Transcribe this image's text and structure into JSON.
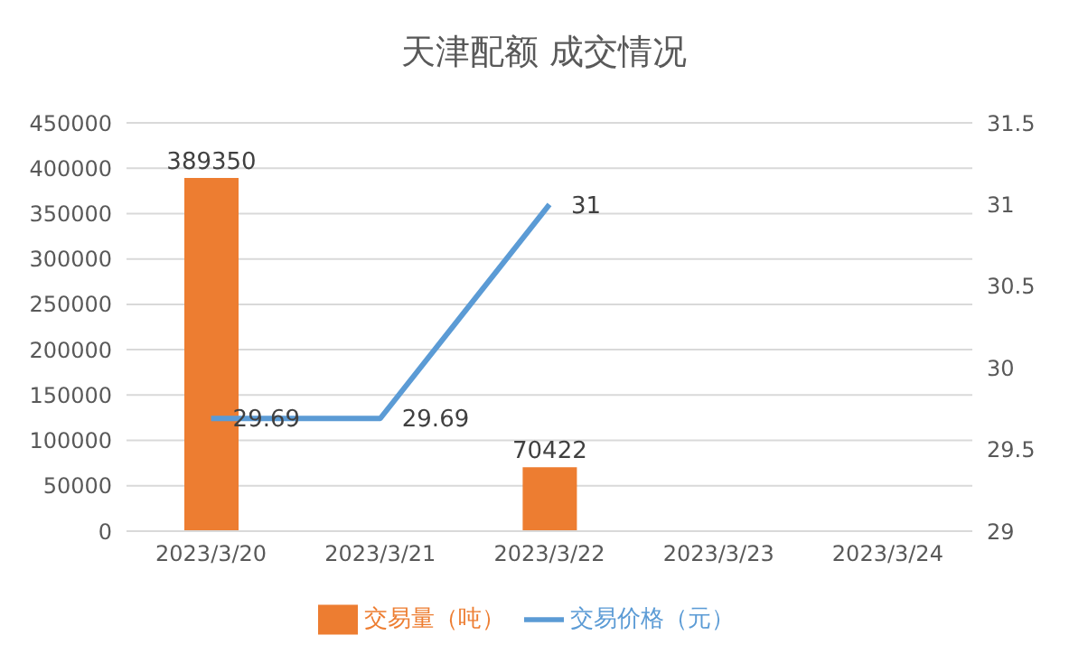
{
  "chart_data": {
    "type": "bar",
    "title": "天津配额 成交情况",
    "categories": [
      "2023/3/20",
      "2023/3/21",
      "2023/3/22",
      "2023/3/23",
      "2023/3/24"
    ],
    "series": [
      {
        "name": "交易量（吨）",
        "color": "#ed7d31",
        "values": [
          389350,
          null,
          70422,
          null,
          null
        ]
      },
      {
        "name": "交易价格（元）",
        "type": "line",
        "axis": "y2",
        "color": "#5b9bd5",
        "values": [
          29.69,
          29.69,
          31,
          null,
          null
        ]
      }
    ],
    "ylim": [
      0,
      450000
    ],
    "yticks": [
      0,
      50000,
      100000,
      150000,
      200000,
      250000,
      300000,
      350000,
      400000,
      450000
    ],
    "y2lim": [
      29,
      31.5
    ],
    "y2ticks": [
      29,
      29.5,
      30,
      30.5,
      31,
      31.5
    ],
    "grid": "y",
    "legend": "bottom",
    "data_labels": true,
    "marker": "none",
    "line_style": "solid"
  }
}
